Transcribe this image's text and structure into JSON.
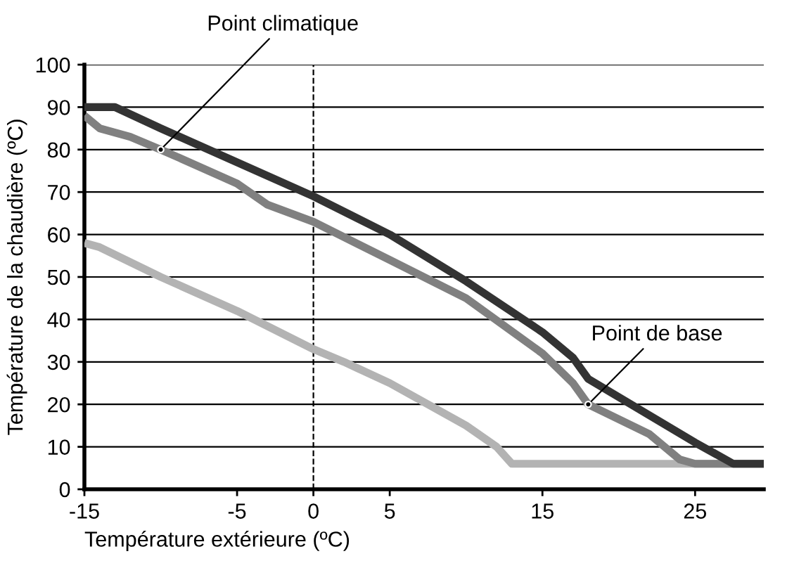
{
  "chart_data": {
    "type": "line",
    "xlabel": "Température extérieure (ºC)",
    "ylabel": "Température de la chaudière (ºC)",
    "xlim": [
      -15,
      29.5
    ],
    "xticks": [
      -15,
      -5,
      0,
      5,
      15,
      25
    ],
    "ylim": [
      0,
      100
    ],
    "yticks": [
      0,
      10,
      20,
      30,
      40,
      50,
      60,
      70,
      80,
      90,
      100
    ],
    "grid": "y",
    "marker": "none",
    "line_style": "solid",
    "series": [
      {
        "color": "#333333",
        "x": [
          -15,
          -13,
          -10,
          0,
          5,
          10,
          15,
          17,
          18,
          25,
          27.5,
          29.5
        ],
        "values": [
          90,
          90,
          85,
          69,
          60,
          49,
          37,
          31,
          26,
          11,
          6,
          6
        ]
      },
      {
        "color": "#808080",
        "x": [
          -15,
          -14,
          -12,
          -10,
          -5,
          -3,
          0,
          5,
          10,
          15,
          17,
          18,
          22,
          24,
          25,
          29.5
        ],
        "values": [
          88,
          85,
          83,
          80,
          72,
          67,
          63,
          54,
          45,
          32,
          25,
          20,
          13,
          7,
          6,
          6
        ]
      },
      {
        "color": "#b3b3b3",
        "x": [
          -15,
          -14,
          -10,
          -5,
          0,
          2,
          5,
          10,
          12,
          13,
          29.5
        ],
        "values": [
          58,
          57,
          50,
          42,
          33,
          30,
          25,
          15,
          10,
          6,
          6
        ]
      }
    ],
    "ref_lines": [
      {
        "axis": "x",
        "value": 0,
        "line_style": "dashed",
        "color": "#000000"
      }
    ],
    "annotations": [
      {
        "text": "Point climatique",
        "x": -10,
        "y": 80
      },
      {
        "text": "Point de base",
        "x": 18,
        "y": 20
      }
    ]
  }
}
